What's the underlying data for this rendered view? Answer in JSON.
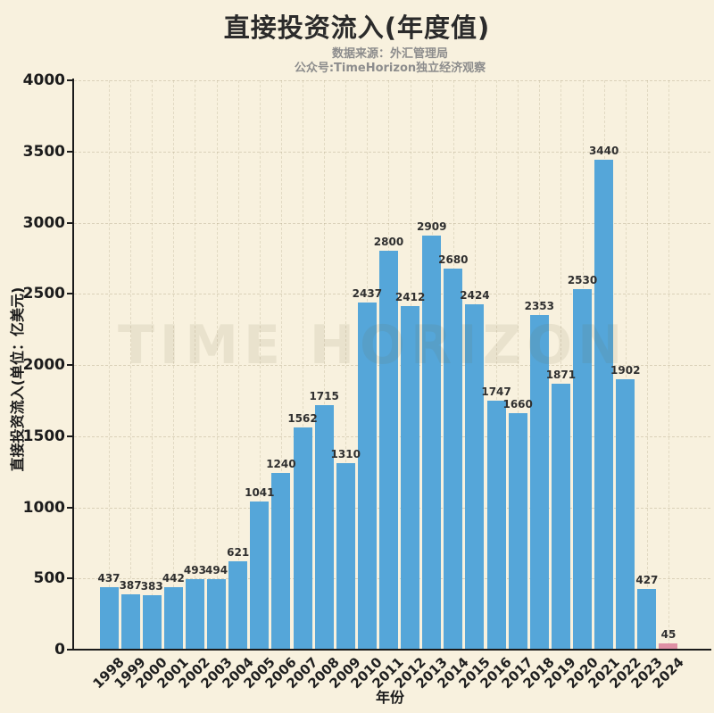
{
  "header": {
    "title": "直接投资流入(年度值)",
    "subtitle_line1": "数据来源：外汇管理局",
    "subtitle_line2": "公众号:TimeHorizon独立经济观察"
  },
  "watermark": "TIME HORIZON",
  "chart_data": {
    "type": "bar",
    "title": "直接投资流入(年度值)",
    "xlabel": "年份",
    "ylabel": "直接投资流入(单位：亿美元)",
    "categories": [
      "1998",
      "1999",
      "2000",
      "2001",
      "2002",
      "2003",
      "2004",
      "2005",
      "2006",
      "2007",
      "2008",
      "2009",
      "2010",
      "2011",
      "2012",
      "2013",
      "2014",
      "2015",
      "2016",
      "2017",
      "2018",
      "2019",
      "2020",
      "2021",
      "2022",
      "2023",
      "2024"
    ],
    "values": [
      437,
      387,
      383,
      442,
      493,
      494,
      621,
      1041,
      1240,
      1562,
      1715,
      1310,
      2437,
      2800,
      2412,
      2909,
      2680,
      2424,
      1747,
      1660,
      2353,
      1871,
      2530,
      3440,
      1902,
      427,
      45
    ],
    "ylim": [
      0,
      4000
    ],
    "yticks": [
      0,
      500,
      1000,
      1500,
      2000,
      2500,
      3000,
      3500,
      4000
    ],
    "grid": true,
    "legend": "none",
    "colors": {
      "bar": "#55a6d9",
      "highlight": "#df90a5",
      "background": "#f8f1de",
      "axis": "#1b1b1b"
    },
    "highlight_index": 26
  }
}
